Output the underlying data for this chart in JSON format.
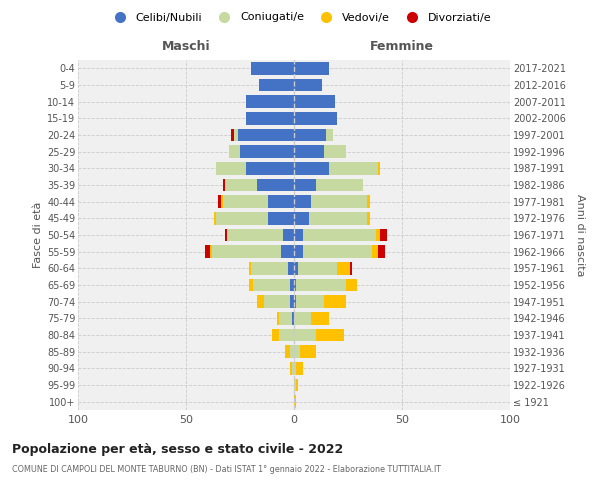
{
  "age_groups": [
    "100+",
    "95-99",
    "90-94",
    "85-89",
    "80-84",
    "75-79",
    "70-74",
    "65-69",
    "60-64",
    "55-59",
    "50-54",
    "45-49",
    "40-44",
    "35-39",
    "30-34",
    "25-29",
    "20-24",
    "15-19",
    "10-14",
    "5-9",
    "0-4"
  ],
  "birth_years": [
    "≤ 1921",
    "1922-1926",
    "1927-1931",
    "1932-1936",
    "1937-1941",
    "1942-1946",
    "1947-1951",
    "1952-1956",
    "1957-1961",
    "1962-1966",
    "1967-1971",
    "1972-1976",
    "1977-1981",
    "1982-1986",
    "1987-1991",
    "1992-1996",
    "1997-2001",
    "2002-2006",
    "2007-2011",
    "2012-2016",
    "2017-2021"
  ],
  "colors": {
    "celibi": "#4472c4",
    "coniugati": "#c5d9a0",
    "vedovi": "#ffc000",
    "divorziati": "#cc0000"
  },
  "males": {
    "celibi": [
      0,
      0,
      0,
      0,
      0,
      1,
      2,
      2,
      3,
      6,
      5,
      12,
      12,
      17,
      22,
      25,
      26,
      22,
      22,
      16,
      20
    ],
    "coniugati": [
      0,
      0,
      1,
      2,
      7,
      6,
      12,
      17,
      17,
      32,
      26,
      24,
      21,
      15,
      14,
      5,
      2,
      0,
      0,
      0,
      0
    ],
    "vedovi": [
      0,
      0,
      1,
      2,
      3,
      1,
      3,
      2,
      1,
      1,
      0,
      1,
      1,
      0,
      0,
      0,
      0,
      0,
      0,
      0,
      0
    ],
    "divorziati": [
      0,
      0,
      0,
      0,
      0,
      0,
      0,
      0,
      0,
      2,
      1,
      0,
      1,
      1,
      0,
      0,
      1,
      0,
      0,
      0,
      0
    ]
  },
  "females": {
    "celibi": [
      0,
      0,
      0,
      0,
      0,
      0,
      1,
      1,
      2,
      4,
      4,
      7,
      8,
      10,
      16,
      14,
      15,
      20,
      19,
      13,
      16
    ],
    "coniugati": [
      0,
      1,
      1,
      3,
      10,
      8,
      13,
      23,
      18,
      32,
      34,
      27,
      26,
      22,
      23,
      10,
      3,
      0,
      0,
      0,
      0
    ],
    "vedovi": [
      1,
      1,
      3,
      7,
      13,
      8,
      10,
      5,
      6,
      3,
      2,
      1,
      1,
      0,
      1,
      0,
      0,
      0,
      0,
      0,
      0
    ],
    "divorziati": [
      0,
      0,
      0,
      0,
      0,
      0,
      0,
      0,
      1,
      3,
      3,
      0,
      0,
      0,
      0,
      0,
      0,
      0,
      0,
      0,
      0
    ]
  },
  "title": "Popolazione per età, sesso e stato civile - 2022",
  "subtitle": "COMUNE DI CAMPOLI DEL MONTE TABURNO (BN) - Dati ISTAT 1° gennaio 2022 - Elaborazione TUTTITALIA.IT",
  "xlabel_left": "Maschi",
  "xlabel_right": "Femmine",
  "ylabel_left": "Fasce di età",
  "ylabel_right": "Anni di nascita",
  "xlim": 100,
  "legend_labels": [
    "Celibi/Nubili",
    "Coniugati/e",
    "Vedovi/e",
    "Divorziati/e"
  ],
  "bg_color": "#f0f0f0",
  "grid_color": "#cccccc"
}
